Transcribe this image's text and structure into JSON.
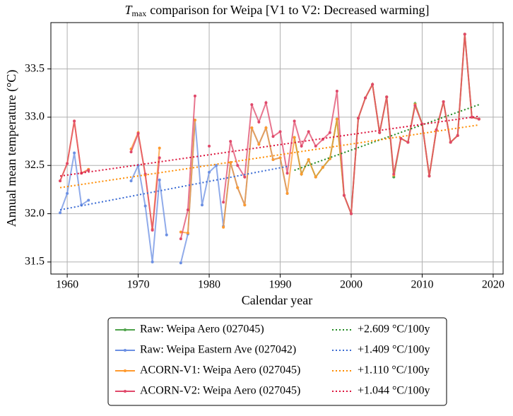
{
  "chart_data": {
    "type": "line",
    "title_symbol": "T",
    "title_subscript": "max",
    "title": "comparison for Weipa   [V1 to V2: Decreased warming]",
    "x_label": "Calendar year",
    "y_label": "Annual mean temperature (°C)",
    "x": [
      1959,
      1960,
      1961,
      1962,
      1963,
      1964,
      1965,
      1966,
      1967,
      1968,
      1969,
      1970,
      1971,
      1972,
      1973,
      1974,
      1975,
      1976,
      1977,
      1978,
      1979,
      1980,
      1981,
      1982,
      1983,
      1984,
      1985,
      1986,
      1987,
      1988,
      1989,
      1990,
      1991,
      1992,
      1993,
      1994,
      1995,
      1996,
      1997,
      1998,
      1999,
      2000,
      2001,
      2002,
      2003,
      2004,
      2005,
      2006,
      2007,
      2008,
      2009,
      2010,
      2011,
      2012,
      2013,
      2014,
      2015,
      2016,
      2017,
      2018
    ],
    "series": [
      {
        "name": "Raw: Weipa Aero (027045)",
        "color": "#4ea34a",
        "values": [
          null,
          null,
          null,
          null,
          null,
          null,
          null,
          null,
          null,
          null,
          null,
          null,
          null,
          null,
          null,
          null,
          null,
          null,
          null,
          null,
          null,
          null,
          null,
          null,
          null,
          null,
          null,
          null,
          null,
          null,
          null,
          null,
          null,
          32.79,
          32.41,
          32.56,
          32.38,
          32.48,
          32.57,
          32.98,
          32.19,
          32.0,
          32.99,
          33.2,
          33.34,
          32.84,
          33.21,
          32.38,
          32.78,
          32.74,
          33.14,
          32.93,
          32.39,
          32.87,
          33.16,
          32.74,
          32.81,
          33.86,
          33.0,
          32.98
        ]
      },
      {
        "name": "Raw: Weipa Eastern Ave (027042)",
        "color": "#6b8fe3",
        "values": [
          32.01,
          32.21,
          32.63,
          32.09,
          32.14,
          null,
          null,
          null,
          null,
          null,
          32.34,
          32.5,
          32.08,
          31.5,
          32.35,
          31.78,
          null,
          31.49,
          31.79,
          32.97,
          32.09,
          32.43,
          32.5,
          31.87,
          32.53,
          32.27,
          32.09,
          32.89,
          32.72,
          32.89,
          32.56,
          32.58,
          32.21,
          null,
          null,
          null,
          null,
          null,
          null,
          null,
          null,
          null,
          null,
          null,
          null,
          null,
          null,
          null,
          null,
          null,
          null,
          null,
          null,
          null,
          null,
          null,
          null,
          null,
          null,
          null
        ]
      },
      {
        "name": "ACORN-V1: Weipa Aero (027045)",
        "color": "#ff9a2e",
        "values": [
          32.34,
          32.52,
          32.96,
          32.42,
          32.46,
          null,
          null,
          null,
          null,
          null,
          32.67,
          32.84,
          32.4,
          31.84,
          32.68,
          null,
          null,
          31.81,
          31.8,
          32.97,
          null,
          null,
          null,
          31.86,
          32.53,
          32.27,
          32.09,
          32.89,
          32.72,
          32.89,
          32.56,
          32.58,
          32.21,
          32.79,
          32.41,
          32.56,
          32.38,
          32.48,
          32.57,
          32.98,
          32.19,
          32.0,
          32.99,
          33.2,
          33.34,
          32.84,
          33.21,
          32.4,
          32.78,
          32.74,
          33.13,
          32.93,
          32.39,
          32.87,
          33.16,
          32.74,
          32.81,
          33.86,
          33.0,
          32.98
        ]
      },
      {
        "name": "ACORN-V2: Weipa Aero (027045)",
        "color": "#e0486a",
        "values": [
          32.34,
          32.52,
          32.96,
          32.42,
          32.45,
          null,
          null,
          null,
          null,
          null,
          32.64,
          32.83,
          32.41,
          31.83,
          32.58,
          null,
          null,
          31.74,
          32.04,
          33.22,
          null,
          32.7,
          null,
          32.12,
          32.75,
          32.5,
          32.38,
          33.13,
          32.95,
          33.15,
          32.8,
          32.85,
          32.42,
          32.96,
          32.7,
          32.85,
          32.7,
          32.77,
          32.84,
          33.27,
          32.19,
          32.0,
          32.99,
          33.2,
          33.34,
          32.84,
          33.21,
          32.41,
          32.78,
          32.74,
          33.12,
          32.93,
          32.39,
          32.87,
          33.16,
          32.74,
          32.81,
          33.86,
          33.0,
          32.98
        ]
      }
    ],
    "trends": [
      {
        "name": "+2.609 °C/100y",
        "color": "#228b22",
        "x": [
          1992,
          2018
        ],
        "values": [
          32.45,
          33.13
        ]
      },
      {
        "name": "+1.409 °C/100y",
        "color": "#3a6bd4",
        "x": [
          1959,
          1991
        ],
        "values": [
          32.04,
          32.49
        ]
      },
      {
        "name": "+1.110 °C/100y",
        "color": "#ff8c00",
        "x": [
          1959,
          2018
        ],
        "values": [
          32.27,
          32.92
        ]
      },
      {
        "name": "+1.044 °C/100y",
        "color": "#dc143c",
        "x": [
          1959,
          2018
        ],
        "values": [
          32.39,
          33.01
        ]
      }
    ],
    "xlim": [
      1957.7,
      2021.4
    ],
    "ylim": [
      31.375,
      33.98
    ],
    "xticks": [
      1960,
      1970,
      1980,
      1990,
      2000,
      2010,
      2020
    ],
    "yticks": [
      31.5,
      {
        "value": 32.0,
        "label": "32.0"
      },
      32.5,
      {
        "value": 33.0,
        "label": "33.0"
      },
      33.5
    ],
    "grid": true,
    "legend": "below"
  }
}
